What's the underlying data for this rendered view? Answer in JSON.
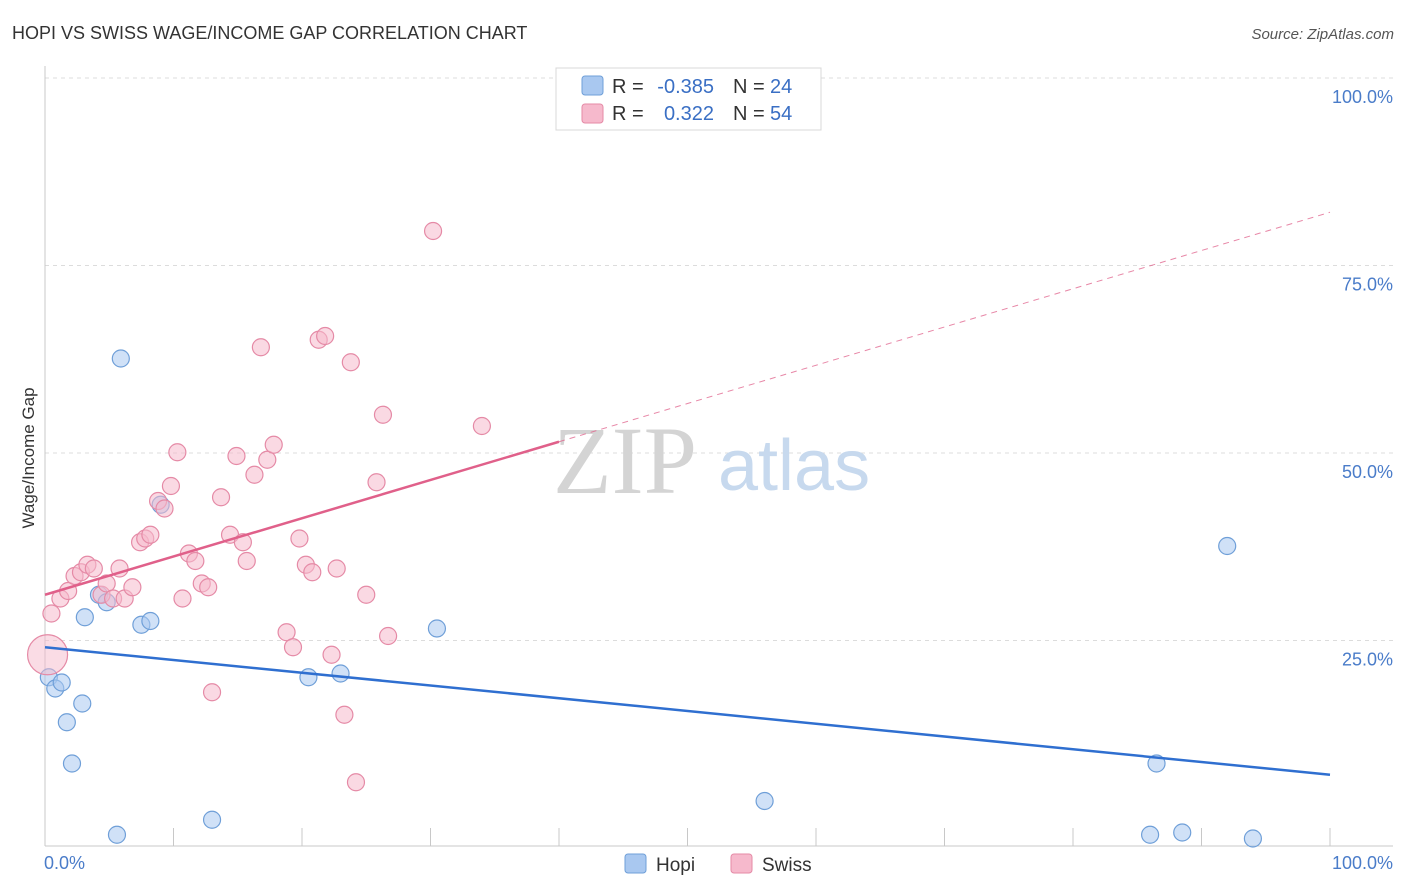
{
  "chart_data": {
    "type": "scatter",
    "title": "HOPI VS SWISS WAGE/INCOME GAP CORRELATION CHART",
    "source": "Source: ZipAtlas.com",
    "xlabel": "",
    "ylabel": "Wage/Income Gap",
    "xlim": [
      0,
      100
    ],
    "ylim": [
      0,
      100
    ],
    "x_tick_labels": {
      "left": "0.0%",
      "right": "100.0%"
    },
    "y_ticks": [
      {
        "value": 100,
        "label": "100.0%"
      },
      {
        "value": 75,
        "label": "75.0%"
      },
      {
        "value": 50,
        "label": "50.0%"
      },
      {
        "value": 25,
        "label": "25.0%"
      }
    ],
    "watermark": {
      "zip": "ZIP",
      "atlas": "atlas"
    },
    "legend_top": [
      {
        "series": "Hopi",
        "r_label": "R =",
        "r_value": "-0.385",
        "n_label": "N =",
        "n_value": "24",
        "color": "#a9c8f0"
      },
      {
        "series": "Swiss",
        "r_label": "R =",
        "r_value": "0.322",
        "n_label": "N =",
        "n_value": "54",
        "color": "#f6b9cc"
      }
    ],
    "series": [
      {
        "name": "Hopi",
        "color": "#a9c8f0",
        "stroke": "#6f9fd8",
        "trend_color": "#2f6fd0",
        "trend": {
          "x1": 0,
          "y1": 26.5,
          "x2": 100,
          "y2": 9.5,
          "dashed_from": null
        },
        "points": [
          [
            0.3,
            22.5
          ],
          [
            0.8,
            21.0
          ],
          [
            1.3,
            21.8
          ],
          [
            1.7,
            16.5
          ],
          [
            2.1,
            11.0
          ],
          [
            2.9,
            19.0
          ],
          [
            3.1,
            30.5
          ],
          [
            4.2,
            33.5
          ],
          [
            4.8,
            32.5
          ],
          [
            5.6,
            1.5
          ],
          [
            5.9,
            65.0
          ],
          [
            7.5,
            29.5
          ],
          [
            8.2,
            30.0
          ],
          [
            9.0,
            45.5
          ],
          [
            13.0,
            3.5
          ],
          [
            20.5,
            22.5
          ],
          [
            23.0,
            23.0
          ],
          [
            30.5,
            29.0
          ],
          [
            56.0,
            6.0
          ],
          [
            86.0,
            1.5
          ],
          [
            86.5,
            11.0
          ],
          [
            88.5,
            1.8
          ],
          [
            92.0,
            40.0
          ],
          [
            94.0,
            1.0
          ]
        ]
      },
      {
        "name": "Swiss",
        "color": "#f6b9cc",
        "stroke": "#e58aa6",
        "trend_color": "#e0608a",
        "trend": {
          "x1": 0,
          "y1": 33.5,
          "x2": 100,
          "y2": 84.5,
          "dashed_from": 40
        },
        "points": [
          [
            0.2,
            25.5
          ],
          [
            0.5,
            31.0
          ],
          [
            1.2,
            33.0
          ],
          [
            1.8,
            34.0
          ],
          [
            2.3,
            36.0
          ],
          [
            2.8,
            36.5
          ],
          [
            3.3,
            37.5
          ],
          [
            3.8,
            37.0
          ],
          [
            4.4,
            33.5
          ],
          [
            4.8,
            35.0
          ],
          [
            5.3,
            33.0
          ],
          [
            5.8,
            37.0
          ],
          [
            6.2,
            33.0
          ],
          [
            6.8,
            34.5
          ],
          [
            7.4,
            40.5
          ],
          [
            7.8,
            41.0
          ],
          [
            8.2,
            41.5
          ],
          [
            8.8,
            46.0
          ],
          [
            9.3,
            45.0
          ],
          [
            9.8,
            48.0
          ],
          [
            10.3,
            52.5
          ],
          [
            10.7,
            33.0
          ],
          [
            11.2,
            39.0
          ],
          [
            11.7,
            38.0
          ],
          [
            12.2,
            35.0
          ],
          [
            12.7,
            34.5
          ],
          [
            13.0,
            20.5
          ],
          [
            13.7,
            46.5
          ],
          [
            14.4,
            41.5
          ],
          [
            14.9,
            52.0
          ],
          [
            15.4,
            40.5
          ],
          [
            15.7,
            38.0
          ],
          [
            16.3,
            49.5
          ],
          [
            16.8,
            66.5
          ],
          [
            17.3,
            51.5
          ],
          [
            17.8,
            53.5
          ],
          [
            18.8,
            28.5
          ],
          [
            19.3,
            26.5
          ],
          [
            19.8,
            41.0
          ],
          [
            20.3,
            37.5
          ],
          [
            20.8,
            36.5
          ],
          [
            21.3,
            67.5
          ],
          [
            21.8,
            68.0
          ],
          [
            22.3,
            25.5
          ],
          [
            22.7,
            37.0
          ],
          [
            23.3,
            17.5
          ],
          [
            23.8,
            64.5
          ],
          [
            24.2,
            8.5
          ],
          [
            25.0,
            33.5
          ],
          [
            25.8,
            48.5
          ],
          [
            26.3,
            57.5
          ],
          [
            26.7,
            28.0
          ],
          [
            30.2,
            82.0
          ],
          [
            34.0,
            56.0
          ]
        ]
      }
    ]
  }
}
